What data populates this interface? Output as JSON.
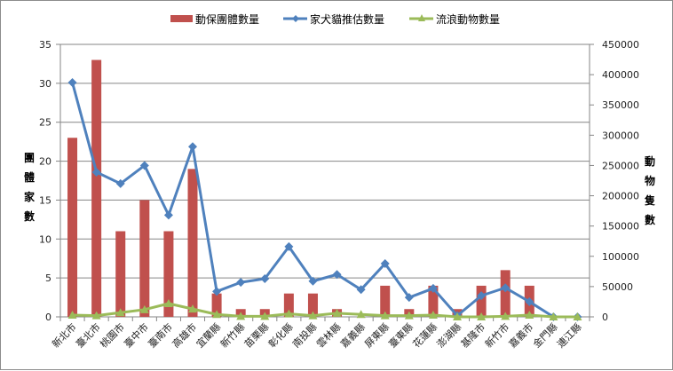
{
  "chart_data": {
    "type": "bar",
    "title": "",
    "categories": [
      "新北市",
      "臺北市",
      "桃園市",
      "臺中市",
      "臺南市",
      "高雄市",
      "宜蘭縣",
      "新竹縣",
      "苗栗縣",
      "彰化縣",
      "南投縣",
      "雲林縣",
      "嘉義縣",
      "屏東縣",
      "臺東縣",
      "花蓮縣",
      "澎湖縣",
      "基隆市",
      "新竹市",
      "嘉義市",
      "金門縣",
      "連江縣"
    ],
    "series": [
      {
        "name": "動保團體數量",
        "type": "bar",
        "axis": "left",
        "color": "#C0504D",
        "values": [
          23,
          33,
          11,
          15,
          11,
          19,
          3,
          1,
          1,
          3,
          3,
          1,
          0,
          4,
          1,
          4,
          1,
          4,
          6,
          4,
          0,
          0
        ]
      },
      {
        "name": "家犬貓推估數量",
        "type": "line",
        "axis": "right",
        "color": "#4F81BD",
        "marker": "diamond",
        "values": [
          387000,
          239000,
          220000,
          250000,
          168000,
          281000,
          42000,
          57000,
          63000,
          116000,
          59000,
          70000,
          45000,
          88000,
          32000,
          47000,
          2000,
          35000,
          48000,
          25000,
          0,
          0
        ]
      },
      {
        "name": "流浪動物數量",
        "type": "line",
        "axis": "right",
        "color": "#9BBB59",
        "marker": "triangle",
        "values": [
          3000,
          2000,
          7000,
          12000,
          22000,
          13000,
          4000,
          1000,
          1000,
          5000,
          2000,
          6000,
          4000,
          2000,
          2000,
          3000,
          0,
          0,
          1000,
          3000,
          0,
          0
        ]
      }
    ],
    "ylabel": "團體家數",
    "ylabel_right": "動物隻數",
    "ylim": [
      0,
      35
    ],
    "ylim_right": [
      0,
      450000
    ],
    "yticks": [
      "0",
      "5",
      "10",
      "15",
      "20",
      "25",
      "30",
      "35"
    ],
    "yticks_right": [
      "0",
      "50000",
      "100000",
      "150000",
      "200000",
      "250000",
      "300000",
      "350000",
      "400000",
      "450000"
    ],
    "grid": true,
    "legend_position": "top"
  }
}
